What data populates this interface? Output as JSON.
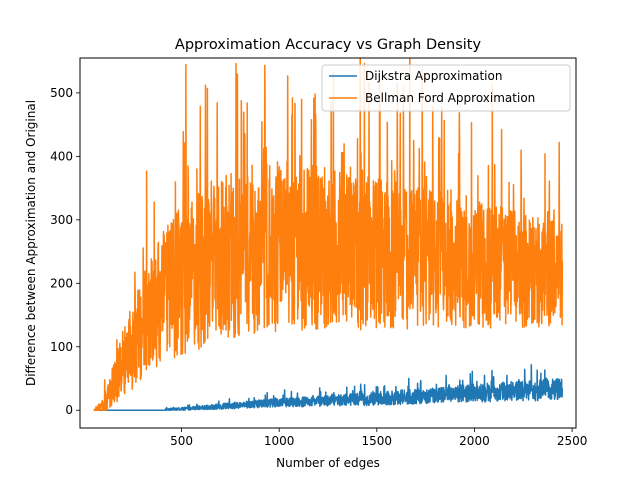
{
  "chart_data": {
    "type": "line",
    "title": "Approximation Accuracy vs Graph Density",
    "xlabel": "Number of edges",
    "ylabel": "Difference between Approximation and Original",
    "xlim": [
      -20,
      2520
    ],
    "ylim": [
      -28,
      555
    ],
    "xticks": [
      500,
      1000,
      1500,
      2000,
      2500
    ],
    "yticks": [
      0,
      100,
      200,
      300,
      400,
      500
    ],
    "legend_position": "top-right",
    "grid": false,
    "series": [
      {
        "name": "Dijkstra Approximation",
        "color": "#1f77b4",
        "x": [
          50,
          100,
          200,
          300,
          400,
          500,
          600,
          700,
          800,
          900,
          1000,
          1100,
          1200,
          1300,
          1400,
          1500,
          1600,
          1700,
          1800,
          1900,
          2000,
          2100,
          2200,
          2300,
          2400,
          2450
        ],
        "y": [
          0,
          0,
          0,
          0,
          1,
          2,
          4,
          6,
          8,
          10,
          12,
          13,
          14,
          16,
          17,
          18,
          20,
          22,
          24,
          26,
          27,
          28,
          30,
          31,
          33,
          34
        ],
        "spread": [
          0,
          0,
          0,
          0,
          2,
          3,
          4,
          6,
          7,
          8,
          9,
          10,
          11,
          12,
          13,
          14,
          15,
          16,
          17,
          18,
          19,
          20,
          21,
          22,
          22,
          22
        ]
      },
      {
        "name": "Bellman Ford Approximation",
        "color": "#ff7f0e",
        "x": [
          50,
          100,
          150,
          200,
          250,
          300,
          350,
          400,
          450,
          500,
          600,
          700,
          800,
          900,
          1000,
          1100,
          1200,
          1300,
          1400,
          1500,
          1600,
          1700,
          1800,
          1900,
          2000,
          2100,
          2200,
          2300,
          2400,
          2450
        ],
        "y": [
          0,
          5,
          40,
          75,
          100,
          130,
          150,
          175,
          190,
          205,
          225,
          240,
          250,
          255,
          258,
          258,
          256,
          254,
          250,
          247,
          244,
          240,
          237,
          234,
          230,
          227,
          224,
          221,
          218,
          215
        ],
        "spread": [
          0,
          20,
          45,
          70,
          90,
          110,
          125,
          140,
          150,
          160,
          170,
          175,
          180,
          180,
          180,
          178,
          175,
          170,
          165,
          160,
          155,
          150,
          145,
          140,
          135,
          130,
          125,
          120,
          115,
          110
        ]
      }
    ]
  }
}
